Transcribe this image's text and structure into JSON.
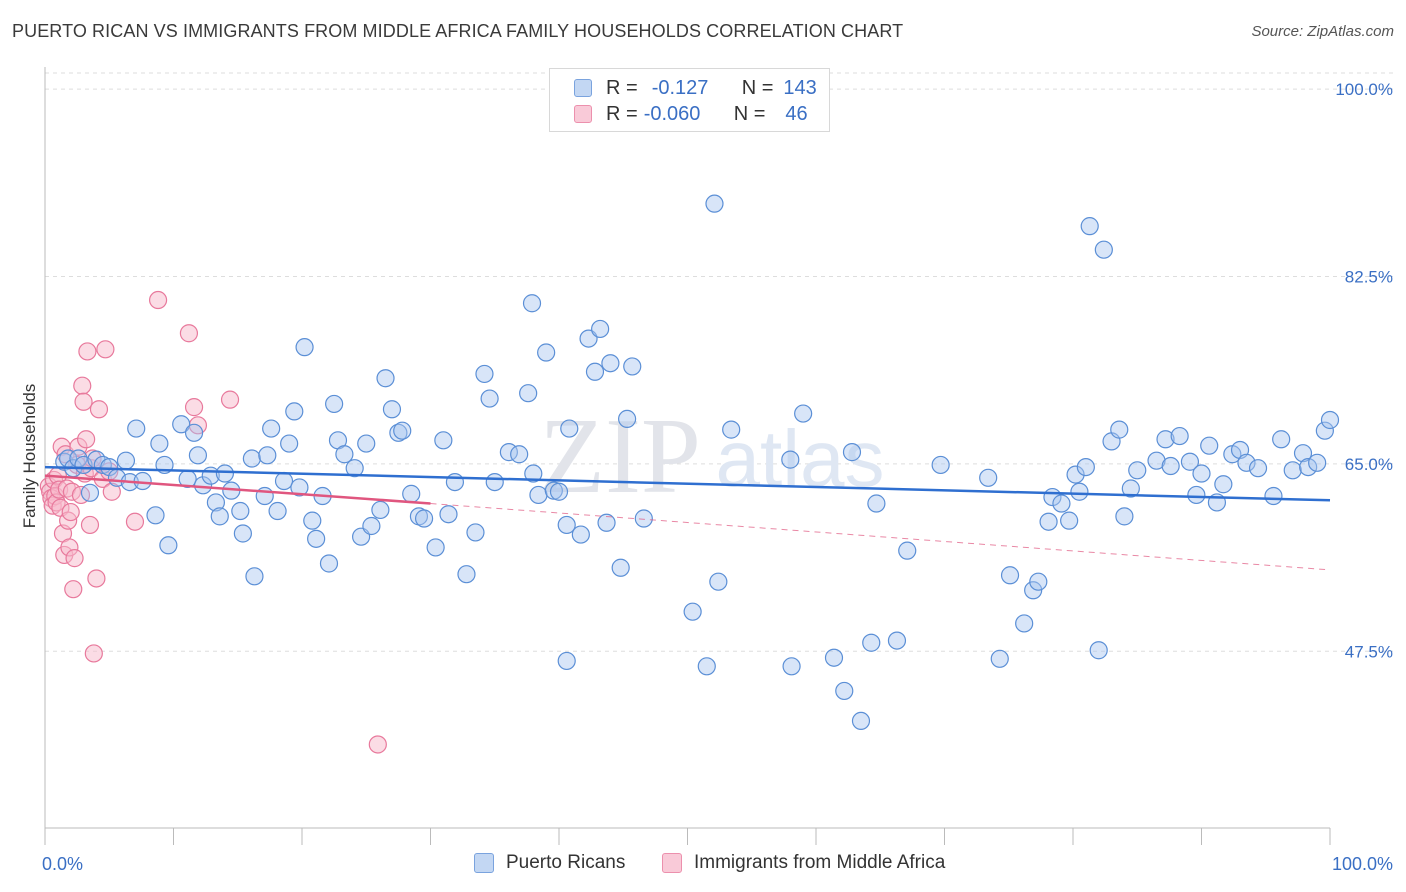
{
  "title": "PUERTO RICAN VS IMMIGRANTS FROM MIDDLE AFRICA FAMILY HOUSEHOLDS CORRELATION CHART",
  "source": "Source: ZipAtlas.com",
  "watermark": {
    "zip": "ZIP",
    "atlas": "atlas"
  },
  "legend": {
    "rows": [
      {
        "r_label": "R =",
        "r_value": "-0.127",
        "n_label": "N =",
        "n_value": "143"
      },
      {
        "r_label": "R =",
        "r_value": "-0.060",
        "n_label": "N =",
        "n_value": "46"
      }
    ]
  },
  "bottom_legend": {
    "series1": "Puerto Ricans",
    "series2": "Immigrants from Middle Africa"
  },
  "colors": {
    "blue_fill": "#a9c6ef",
    "blue_stroke": "#5b8fd6",
    "blue_line": "#2f6fd0",
    "pink_fill": "#f7b9cc",
    "pink_stroke": "#e8799c",
    "pink_line": "#e0567f",
    "tick_label": "#3a6fc4",
    "grid": "#dddddd"
  },
  "chart_data": {
    "type": "scatter",
    "title": "PUERTO RICAN VS IMMIGRANTS FROM MIDDLE AFRICA FAMILY HOUSEHOLDS CORRELATION CHART",
    "xlabel": "",
    "ylabel": "Family Households",
    "xlim": [
      0,
      100
    ],
    "ylim": [
      31,
      101.5
    ],
    "x_tick_labels": [
      "0.0%",
      "100.0%"
    ],
    "y_ticks": [
      47.5,
      65.0,
      82.5,
      100.0
    ],
    "y_tick_labels": [
      "47.5%",
      "65.0%",
      "82.5%",
      "100.0%"
    ],
    "grid": true,
    "legend_position": "top-center",
    "series": [
      {
        "name": "Puerto Ricans",
        "R": -0.127,
        "N": 143,
        "trend": {
          "x": [
            0,
            100
          ],
          "y": [
            64.7,
            61.6
          ]
        },
        "points": [
          [
            1.5,
            65.2
          ],
          [
            1.8,
            65.5
          ],
          [
            2.2,
            64.6
          ],
          [
            2.6,
            65.5
          ],
          [
            3.0,
            64.9
          ],
          [
            3.5,
            62.3
          ],
          [
            4.0,
            65.4
          ],
          [
            4.5,
            64.9
          ],
          [
            5.0,
            64.7
          ],
          [
            5.6,
            63.7
          ],
          [
            6.3,
            65.3
          ],
          [
            6.6,
            63.3
          ],
          [
            7.1,
            68.3
          ],
          [
            7.6,
            63.4
          ],
          [
            8.6,
            60.2
          ],
          [
            8.9,
            66.9
          ],
          [
            9.3,
            64.9
          ],
          [
            9.6,
            57.4
          ],
          [
            10.6,
            68.7
          ],
          [
            11.1,
            63.6
          ],
          [
            11.6,
            67.9
          ],
          [
            11.9,
            65.8
          ],
          [
            12.3,
            63.0
          ],
          [
            12.9,
            63.9
          ],
          [
            13.3,
            61.4
          ],
          [
            13.6,
            60.1
          ],
          [
            14.0,
            64.1
          ],
          [
            14.5,
            62.5
          ],
          [
            15.2,
            60.6
          ],
          [
            15.4,
            58.5
          ],
          [
            16.1,
            65.5
          ],
          [
            16.3,
            54.5
          ],
          [
            17.1,
            62.0
          ],
          [
            17.3,
            65.8
          ],
          [
            17.6,
            68.3
          ],
          [
            18.1,
            60.6
          ],
          [
            18.6,
            63.4
          ],
          [
            19.0,
            66.9
          ],
          [
            19.4,
            69.9
          ],
          [
            19.8,
            62.8
          ],
          [
            20.2,
            75.9
          ],
          [
            20.8,
            59.7
          ],
          [
            21.1,
            58.0
          ],
          [
            21.6,
            62.0
          ],
          [
            22.1,
            55.7
          ],
          [
            22.5,
            70.6
          ],
          [
            22.8,
            67.2
          ],
          [
            23.3,
            65.9
          ],
          [
            24.1,
            64.6
          ],
          [
            24.6,
            58.2
          ],
          [
            25.0,
            66.9
          ],
          [
            25.4,
            59.2
          ],
          [
            26.1,
            60.7
          ],
          [
            26.5,
            73.0
          ],
          [
            27.0,
            70.1
          ],
          [
            27.5,
            67.9
          ],
          [
            27.8,
            68.1
          ],
          [
            28.5,
            62.2
          ],
          [
            29.1,
            60.1
          ],
          [
            29.5,
            59.9
          ],
          [
            30.4,
            57.2
          ],
          [
            31.0,
            67.2
          ],
          [
            31.4,
            60.3
          ],
          [
            31.9,
            63.3
          ],
          [
            32.8,
            54.7
          ],
          [
            33.5,
            58.6
          ],
          [
            34.2,
            73.4
          ],
          [
            34.6,
            71.1
          ],
          [
            35.0,
            63.3
          ],
          [
            36.1,
            66.1
          ],
          [
            36.9,
            65.9
          ],
          [
            37.6,
            71.6
          ],
          [
            37.9,
            80.0
          ],
          [
            38.0,
            64.1
          ],
          [
            38.4,
            62.1
          ],
          [
            39.0,
            75.4
          ],
          [
            39.6,
            62.5
          ],
          [
            40.0,
            62.4
          ],
          [
            40.6,
            59.3
          ],
          [
            40.8,
            68.3
          ],
          [
            41.7,
            58.4
          ],
          [
            42.3,
            76.7
          ],
          [
            42.8,
            73.6
          ],
          [
            43.2,
            77.6
          ],
          [
            43.7,
            59.5
          ],
          [
            44.0,
            74.4
          ],
          [
            44.8,
            55.3
          ],
          [
            45.3,
            69.2
          ],
          [
            45.7,
            74.1
          ],
          [
            46.6,
            59.9
          ],
          [
            50.4,
            51.2
          ],
          [
            51.5,
            46.1
          ],
          [
            53.4,
            68.2
          ],
          [
            58.0,
            65.4
          ],
          [
            58.1,
            46.1
          ],
          [
            59.0,
            69.7
          ],
          [
            61.4,
            46.9
          ],
          [
            62.2,
            43.8
          ],
          [
            62.8,
            66.1
          ],
          [
            63.5,
            41.0
          ],
          [
            64.3,
            48.3
          ],
          [
            64.7,
            61.3
          ],
          [
            66.3,
            48.5
          ],
          [
            67.1,
            56.9
          ],
          [
            69.7,
            64.9
          ],
          [
            73.4,
            63.7
          ],
          [
            74.3,
            46.8
          ],
          [
            75.1,
            54.6
          ],
          [
            76.2,
            50.1
          ],
          [
            76.9,
            53.2
          ],
          [
            77.3,
            54.0
          ],
          [
            78.1,
            59.6
          ],
          [
            78.4,
            61.9
          ],
          [
            79.1,
            61.3
          ],
          [
            79.7,
            59.7
          ],
          [
            80.2,
            64.0
          ],
          [
            80.5,
            62.4
          ],
          [
            81.0,
            64.7
          ],
          [
            82.0,
            47.6
          ],
          [
            83.0,
            67.1
          ],
          [
            83.6,
            68.2
          ],
          [
            84.0,
            60.1
          ],
          [
            84.5,
            62.7
          ],
          [
            85.0,
            64.4
          ],
          [
            86.5,
            65.3
          ],
          [
            87.2,
            67.3
          ],
          [
            87.6,
            64.8
          ],
          [
            88.3,
            67.6
          ],
          [
            89.1,
            65.2
          ],
          [
            89.6,
            62.1
          ],
          [
            90.0,
            64.1
          ],
          [
            90.6,
            66.7
          ],
          [
            91.2,
            61.4
          ],
          [
            91.7,
            63.1
          ],
          [
            92.4,
            65.9
          ],
          [
            93.0,
            66.3
          ],
          [
            93.5,
            65.1
          ],
          [
            94.4,
            64.6
          ],
          [
            95.6,
            62.0
          ],
          [
            96.2,
            67.3
          ],
          [
            97.1,
            64.4
          ],
          [
            97.9,
            66.0
          ],
          [
            98.3,
            64.7
          ],
          [
            99.0,
            65.1
          ],
          [
            99.6,
            68.1
          ],
          [
            100.0,
            69.1
          ],
          [
            52.1,
            89.3
          ],
          [
            81.3,
            87.2
          ],
          [
            82.4,
            85.0
          ],
          [
            40.6,
            46.6
          ],
          [
            52.4,
            54.0
          ]
        ]
      },
      {
        "name": "Immigrants from Middle Africa",
        "R": -0.06,
        "N": 46,
        "trend": {
          "x": [
            0,
            30
          ],
          "y": [
            63.9,
            61.3
          ]
        },
        "trend_extension": {
          "x": [
            30,
            100
          ],
          "y": [
            61.3,
            55.1
          ]
        },
        "points": [
          [
            0.3,
            62.9
          ],
          [
            0.4,
            62.4
          ],
          [
            0.5,
            61.8
          ],
          [
            0.6,
            61.1
          ],
          [
            0.7,
            63.5
          ],
          [
            0.8,
            62.0
          ],
          [
            0.9,
            61.4
          ],
          [
            1.0,
            63.9
          ],
          [
            1.1,
            62.6
          ],
          [
            1.2,
            60.9
          ],
          [
            1.3,
            66.6
          ],
          [
            1.4,
            58.5
          ],
          [
            1.5,
            56.5
          ],
          [
            1.6,
            65.9
          ],
          [
            1.7,
            62.7
          ],
          [
            1.8,
            59.7
          ],
          [
            1.9,
            57.2
          ],
          [
            2.0,
            60.5
          ],
          [
            2.1,
            62.4
          ],
          [
            2.2,
            53.3
          ],
          [
            2.3,
            56.2
          ],
          [
            2.5,
            64.9
          ],
          [
            2.6,
            66.6
          ],
          [
            2.8,
            62.1
          ],
          [
            2.9,
            72.3
          ],
          [
            3.0,
            70.8
          ],
          [
            3.1,
            64.1
          ],
          [
            3.2,
            67.3
          ],
          [
            3.3,
            75.5
          ],
          [
            3.5,
            59.3
          ],
          [
            3.6,
            64.6
          ],
          [
            3.7,
            65.5
          ],
          [
            3.8,
            47.3
          ],
          [
            4.0,
            54.3
          ],
          [
            4.2,
            70.1
          ],
          [
            4.5,
            63.6
          ],
          [
            4.7,
            75.7
          ],
          [
            5.0,
            64.3
          ],
          [
            5.2,
            62.4
          ],
          [
            7.0,
            59.6
          ],
          [
            8.8,
            80.3
          ],
          [
            11.2,
            77.2
          ],
          [
            11.6,
            70.3
          ],
          [
            11.9,
            68.6
          ],
          [
            14.4,
            71.0
          ],
          [
            25.9,
            38.8
          ]
        ]
      }
    ]
  }
}
